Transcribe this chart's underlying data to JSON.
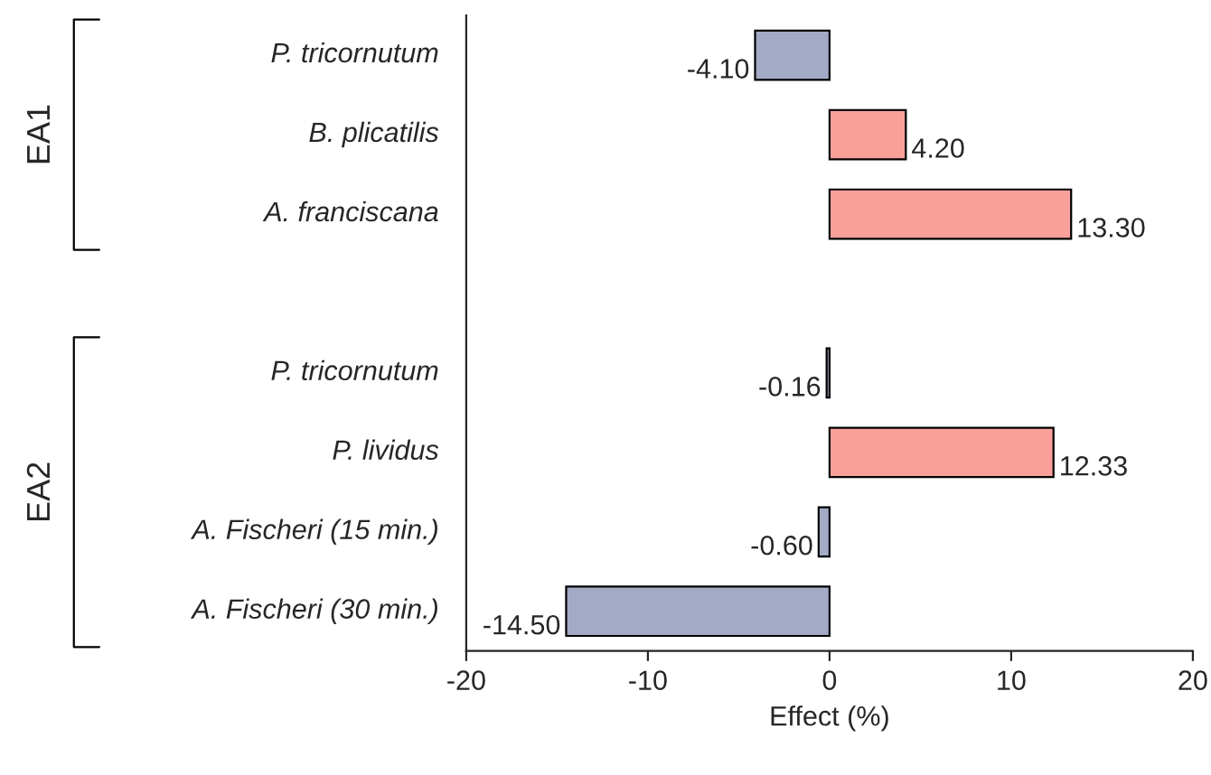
{
  "chart_data": {
    "type": "bar",
    "orientation": "horizontal",
    "xlabel": "Effect (%)",
    "categories": [
      "P. tricornutum",
      "B. plicatilis",
      "A. franciscana",
      null,
      "P. tricornutum",
      "P. lividus",
      "A. Fischeri (15 min.)",
      "A. Fischeri (30 min.)"
    ],
    "values": [
      -4.1,
      4.2,
      13.3,
      null,
      -0.16,
      12.33,
      -0.6,
      -14.5
    ],
    "colors": [
      "#a3aac6",
      "#f9a09b",
      "#f9a09b",
      null,
      "#a3aac6",
      "#f9a09b",
      "#a3aac6",
      "#a3aac6"
    ],
    "value_labels": [
      "-4.10",
      "4.20",
      "13.30",
      null,
      "-0.16",
      "12.33",
      "-0.60",
      "-14.50"
    ],
    "xlim": [
      -20,
      20
    ],
    "xticks": [
      -20,
      -10,
      0,
      10,
      20
    ],
    "grid": false,
    "legend": false,
    "annotations": [
      "EA1",
      "EA2"
    ]
  }
}
